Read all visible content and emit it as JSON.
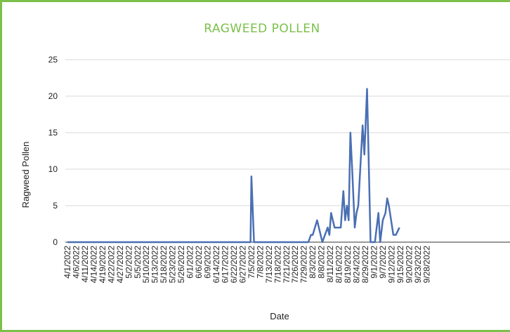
{
  "chart_data": {
    "type": "line",
    "title": "RAGWEED POLLEN",
    "xlabel": "Date",
    "ylabel": "Ragweed Pollen",
    "ylim": [
      0,
      25
    ],
    "yticks": [
      0,
      5,
      10,
      15,
      20,
      25
    ],
    "grid": true,
    "x_tick_labels": [
      "4/1/2022",
      "4/6/2022",
      "4/11/2022",
      "4/14/2022",
      "4/19/2022",
      "4/22/2022",
      "4/27/2022",
      "5/2/2022",
      "5/5/2022",
      "5/10/2022",
      "5/13/2022",
      "5/18/2022",
      "5/23/2022",
      "5/26/2022",
      "6/1/2022",
      "6/6/2022",
      "6/9/2022",
      "6/14/2022",
      "6/17/2022",
      "6/22/2022",
      "6/27/2022",
      "7/5/2022",
      "7/8/2022",
      "7/13/2022",
      "7/18/2022",
      "7/21/2022",
      "7/26/2022",
      "7/29/2022",
      "8/3/2022",
      "8/8/2022",
      "8/11/2022",
      "8/16/2022",
      "8/19/2022",
      "8/24/2022",
      "8/29/2022",
      "9/1/2022",
      "9/7/2022",
      "9/12/2022",
      "9/15/2022",
      "9/20/2022",
      "9/23/2022",
      "9/28/2022"
    ],
    "series": [
      {
        "color": "#4a6fb3",
        "points": [
          {
            "x": 0,
            "y": 0
          },
          {
            "x": 20.9,
            "y": 0
          },
          {
            "x": 21.0,
            "y": 9
          },
          {
            "x": 21.3,
            "y": 0
          },
          {
            "x": 27.5,
            "y": 0
          },
          {
            "x": 27.8,
            "y": 1
          },
          {
            "x": 28.0,
            "y": 1
          },
          {
            "x": 28.5,
            "y": 3
          },
          {
            "x": 29.1,
            "y": 0
          },
          {
            "x": 29.7,
            "y": 2
          },
          {
            "x": 29.9,
            "y": 1
          },
          {
            "x": 30.1,
            "y": 4
          },
          {
            "x": 30.5,
            "y": 2
          },
          {
            "x": 31.2,
            "y": 2
          },
          {
            "x": 31.5,
            "y": 7
          },
          {
            "x": 31.7,
            "y": 3
          },
          {
            "x": 31.9,
            "y": 5
          },
          {
            "x": 32.1,
            "y": 3
          },
          {
            "x": 32.3,
            "y": 15
          },
          {
            "x": 32.5,
            "y": 10
          },
          {
            "x": 32.8,
            "y": 2
          },
          {
            "x": 33.0,
            "y": 4
          },
          {
            "x": 33.2,
            "y": 5
          },
          {
            "x": 33.7,
            "y": 16
          },
          {
            "x": 33.9,
            "y": 12
          },
          {
            "x": 34.2,
            "y": 21
          },
          {
            "x": 34.6,
            "y": 0
          },
          {
            "x": 35.1,
            "y": 0
          },
          {
            "x": 35.5,
            "y": 4
          },
          {
            "x": 35.7,
            "y": 0
          },
          {
            "x": 36.0,
            "y": 3
          },
          {
            "x": 36.3,
            "y": 4
          },
          {
            "x": 36.5,
            "y": 6
          },
          {
            "x": 36.7,
            "y": 5
          },
          {
            "x": 37.2,
            "y": 1
          },
          {
            "x": 37.5,
            "y": 1
          },
          {
            "x": 37.9,
            "y": 2
          }
        ]
      }
    ]
  }
}
